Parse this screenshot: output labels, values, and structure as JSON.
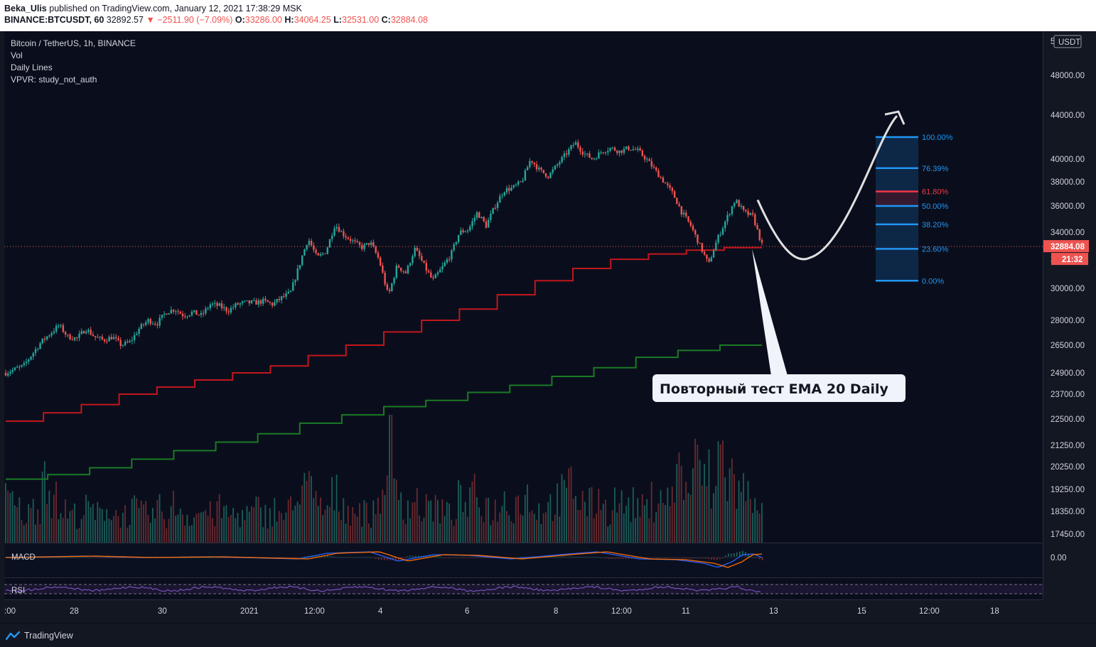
{
  "header": {
    "author": "Beka_Ulis",
    "published_text": "published on TradingView.com, January 12, 2021 17:38:29 MSK",
    "symbol": "BINANCE:BTCUSDT, 60",
    "last": "32892.57",
    "change": "−2511.90 (−7.09%)",
    "o_label": "O:",
    "o": "33286.00",
    "h_label": "H:",
    "h": "34064.25",
    "l_label": "L:",
    "l": "32531.00",
    "c_label": "C:",
    "c": "32884.08"
  },
  "legend": {
    "title": "Bitcoin / TetherUS, 1h, BINANCE",
    "line2": "Vol",
    "line3": "Daily Lines",
    "line4": "VPVR: study_not_auth"
  },
  "footer": {
    "brand": "TradingView"
  },
  "colors": {
    "background": "#131722",
    "up": "#26a69a",
    "down": "#ef5350",
    "ema_red": "#c3161c",
    "ema_green": "#1b7a24",
    "fib_blue": "#2196f3",
    "fib_red": "#f23645",
    "macd": "#2962ff",
    "signal": "#ff6d00",
    "rsi": "#7e57c2"
  },
  "chart_data": {
    "type": "candlestick",
    "currency_badge": "USDT",
    "last_price_label": "32884.08",
    "countdown_label": "21:32",
    "partial_ticks": [
      "5",
      "32"
    ],
    "y_ticks": [
      "48000.00",
      "44000.00",
      "40000.00",
      "38000.00",
      "36000.00",
      "34000.00",
      "30000.00",
      "28000.00",
      "26500.00",
      "24900.00",
      "23700.00",
      "22500.00",
      "21250.00",
      "20250.00",
      "19250.00",
      "18350.00",
      "17450.00"
    ],
    "x_ticks": [
      ":00",
      "28",
      "30",
      "2021",
      "12:00",
      "4",
      "6",
      "8",
      "12:00",
      "11",
      "13",
      "15",
      "12:00",
      "18"
    ],
    "price_path": [
      [
        0,
        24900
      ],
      [
        2,
        25300
      ],
      [
        4,
        26700
      ],
      [
        5,
        27200
      ],
      [
        6,
        27700
      ],
      [
        7,
        27000
      ],
      [
        8,
        26900
      ],
      [
        9,
        27500
      ],
      [
        10,
        27000
      ],
      [
        11,
        26800
      ],
      [
        12,
        27000
      ],
      [
        13,
        26500
      ],
      [
        14,
        26700
      ],
      [
        15,
        27500
      ],
      [
        16,
        28000
      ],
      [
        17,
        27800
      ],
      [
        18,
        28500
      ],
      [
        19,
        28700
      ],
      [
        20,
        28300
      ],
      [
        21,
        28500
      ],
      [
        22,
        28300
      ],
      [
        23,
        29000
      ],
      [
        24,
        28900
      ],
      [
        25,
        28600
      ],
      [
        26,
        29000
      ],
      [
        27,
        29100
      ],
      [
        28,
        29100
      ],
      [
        29,
        29200
      ],
      [
        30,
        29000
      ],
      [
        31,
        29400
      ],
      [
        32,
        29700
      ],
      [
        33,
        31500
      ],
      [
        34,
        33500
      ],
      [
        35,
        32000
      ],
      [
        36,
        32500
      ],
      [
        37,
        34600
      ],
      [
        38,
        33800
      ],
      [
        39,
        33300
      ],
      [
        40,
        32800
      ],
      [
        41,
        33200
      ],
      [
        42,
        31800
      ],
      [
        43,
        29500
      ],
      [
        44,
        31500
      ],
      [
        45,
        31000
      ],
      [
        46,
        32700
      ],
      [
        47,
        31500
      ],
      [
        48,
        30500
      ],
      [
        49,
        31300
      ],
      [
        50,
        32200
      ],
      [
        51,
        34000
      ],
      [
        52,
        34200
      ],
      [
        53,
        35500
      ],
      [
        54,
        34500
      ],
      [
        55,
        36000
      ],
      [
        56,
        37300
      ],
      [
        57,
        37500
      ],
      [
        58,
        38000
      ],
      [
        59,
        40000
      ],
      [
        60,
        39000
      ],
      [
        61,
        38500
      ],
      [
        62,
        39500
      ],
      [
        63,
        40500
      ],
      [
        64,
        41500
      ],
      [
        65,
        40500
      ],
      [
        66,
        40000
      ],
      [
        67,
        40700
      ],
      [
        68,
        41000
      ],
      [
        69,
        40700
      ],
      [
        70,
        41000
      ],
      [
        71,
        40800
      ],
      [
        72,
        40000
      ],
      [
        73,
        39000
      ],
      [
        74,
        38000
      ],
      [
        75,
        37000
      ],
      [
        76,
        35500
      ],
      [
        77,
        34500
      ],
      [
        78,
        33000
      ],
      [
        79,
        31500
      ],
      [
        80,
        33500
      ],
      [
        81,
        35000
      ],
      [
        82,
        36500
      ],
      [
        83,
        35500
      ],
      [
        84,
        35200
      ],
      [
        85,
        33000
      ]
    ],
    "ema_red_steps": [
      22400,
      22800,
      23200,
      23700,
      24100,
      24500,
      24900,
      25300,
      25900,
      26500,
      27300,
      28000,
      28700,
      29600,
      30500,
      31300,
      31900,
      32300,
      32600,
      32800
    ],
    "ema_green_steps": [
      19700,
      19900,
      20200,
      20600,
      21000,
      21400,
      21800,
      22300,
      22700,
      23100,
      23400,
      23800,
      24200,
      24700,
      25200,
      25800,
      26200,
      26500
    ],
    "volume_relative": [
      0.45,
      0.35,
      0.3,
      0.4,
      0.8,
      0.45,
      0.35,
      0.3,
      0.3,
      0.35,
      0.3,
      0.4,
      0.3,
      0.3,
      0.35,
      0.3,
      0.3,
      0.35,
      0.3,
      0.4,
      0.3,
      0.3,
      0.35,
      0.3,
      0.35,
      0.3,
      0.3,
      0.3,
      0.35,
      0.3,
      0.35,
      0.3,
      0.35,
      0.7,
      0.55,
      0.4,
      0.35,
      0.5,
      0.4,
      0.35,
      0.35,
      0.3,
      0.45,
      1.0,
      0.55,
      0.4,
      0.45,
      0.35,
      0.4,
      0.35,
      0.3,
      0.45,
      0.4,
      0.5,
      0.4,
      0.35,
      0.45,
      0.4,
      0.45,
      0.5,
      0.35,
      0.4,
      0.45,
      0.5,
      0.6,
      0.45,
      0.4,
      0.5,
      0.35,
      0.45,
      0.4,
      0.4,
      0.35,
      0.45,
      0.55,
      0.45,
      0.75,
      0.6,
      0.8,
      0.7,
      0.55,
      0.95,
      0.7,
      0.55,
      0.5,
      0.55,
      0.45
    ],
    "fibonacci": [
      {
        "level": "100.00%",
        "price": 42000
      },
      {
        "level": "76.39%",
        "price": 39200
      },
      {
        "level": "61.80%",
        "price": 37200
      },
      {
        "level": "50.00%",
        "price": 36000
      },
      {
        "level": "38.20%",
        "price": 34600
      },
      {
        "level": "23.60%",
        "price": 32700
      },
      {
        "level": "0.00%",
        "price": 30500
      }
    ],
    "callout": "Повторный тест EMA 20 Daily",
    "macd_label": "MACD",
    "macd_zero_label": "0.00",
    "rsi_label": "RSI"
  }
}
